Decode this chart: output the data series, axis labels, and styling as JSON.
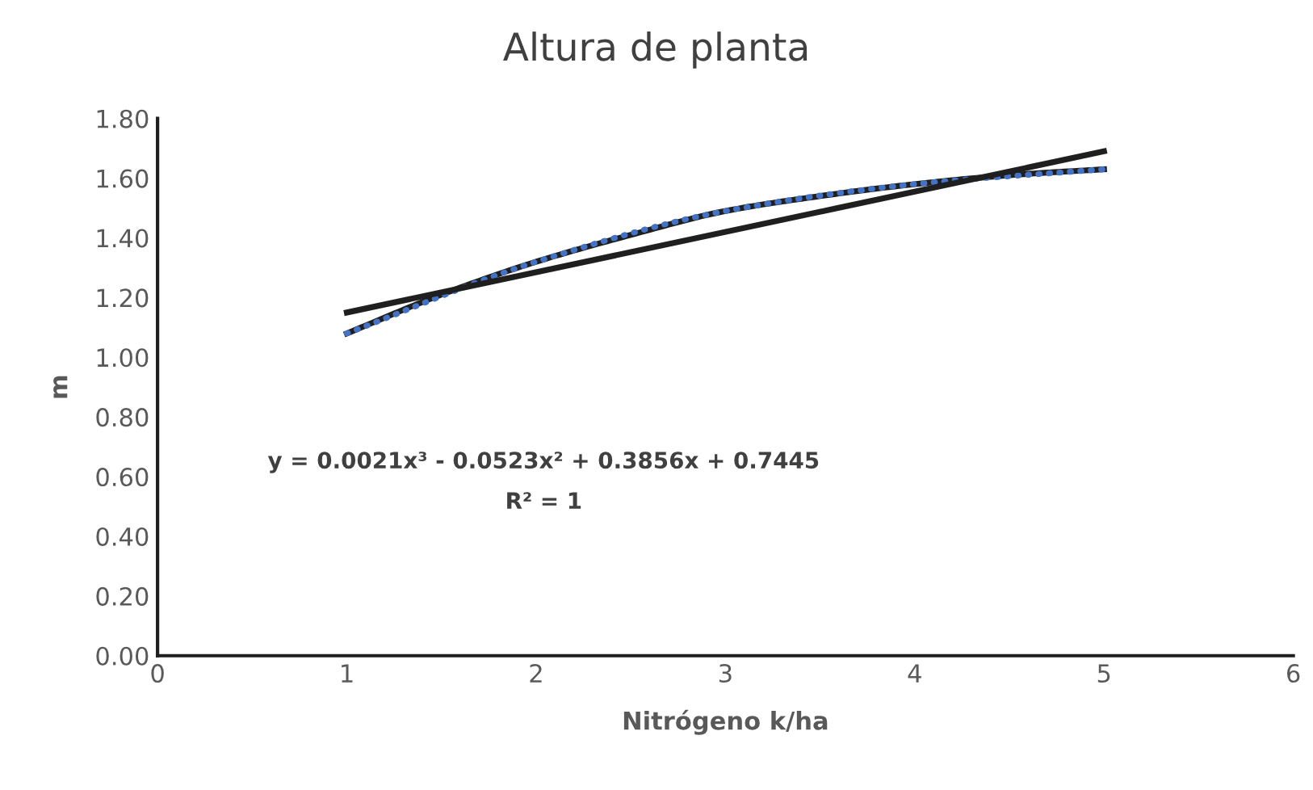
{
  "chart_data": {
    "type": "line",
    "title": "Altura de planta",
    "xlabel": "Nitrógeno k/ha",
    "ylabel": "m",
    "x": [
      1,
      2,
      3,
      4,
      5
    ],
    "series": [
      {
        "color": "#1f1f1f",
        "x": [
          1,
          1.5,
          2,
          2.5,
          3,
          3.5,
          4,
          4.5,
          5
        ],
        "values": [
          1.08,
          1.21,
          1.32,
          1.41,
          1.49,
          1.54,
          1.58,
          1.61,
          1.63
        ],
        "line_style": "solid"
      },
      {
        "color": "#4472c4",
        "values": [
          1.08,
          1.32,
          1.49,
          1.58,
          1.63
        ],
        "line_style": "dotted"
      },
      {
        "color": "#1f1f1f",
        "x": [
          1,
          5
        ],
        "values": [
          1.15,
          1.69
        ],
        "line_style": "solid"
      }
    ],
    "xlim": [
      0,
      6
    ],
    "xticks": [
      0,
      1,
      2,
      3,
      4,
      5,
      6
    ],
    "ylim": [
      0,
      1.8
    ],
    "yticks": [
      {
        "value": 0,
        "label": "0.00"
      },
      {
        "value": 0.2,
        "label": "0.20"
      },
      {
        "value": 0.4,
        "label": "0.40"
      },
      {
        "value": 0.6,
        "label": "0.60"
      },
      {
        "value": 0.8,
        "label": "0.80"
      },
      {
        "value": 1.0,
        "label": "1.00"
      },
      {
        "value": 1.2,
        "label": "1.20"
      },
      {
        "value": 1.4,
        "label": "1.40"
      },
      {
        "value": 1.6,
        "label": "1.60"
      },
      {
        "value": 1.8,
        "label": "1.80"
      }
    ],
    "grid": false,
    "marker": "none",
    "annotations": [
      "y = 0.0021x³ - 0.0523x² + 0.3856x + 0.7445",
      "R² = 1"
    ]
  }
}
